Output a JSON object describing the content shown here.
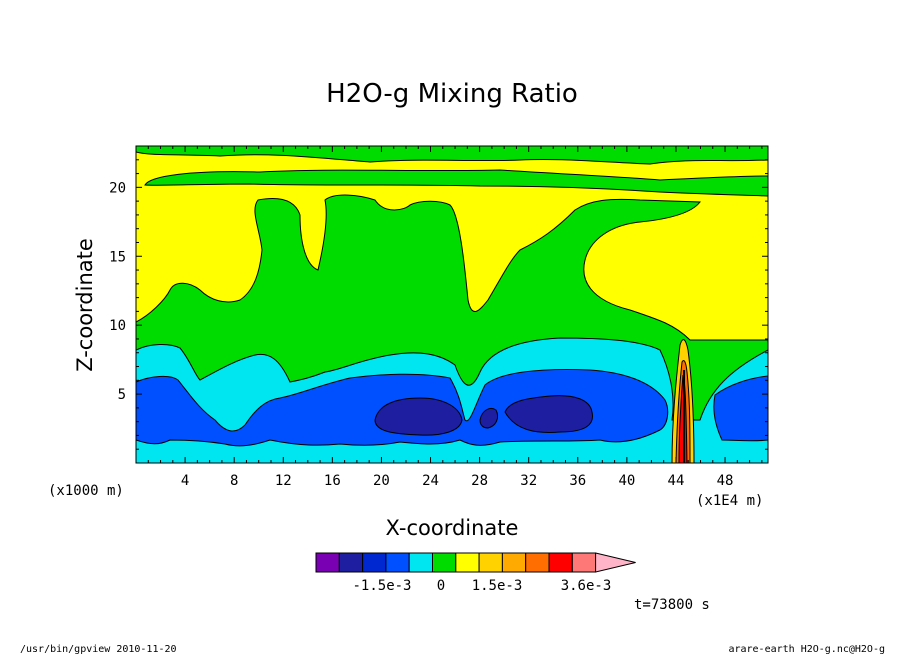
{
  "chart_data": {
    "type": "heatmap",
    "subtype": "filled-contour",
    "title": "H2O-g Mixing Ratio",
    "xlabel": "X-coordinate",
    "ylabel": "Z-coordinate",
    "x_unit_left": "(x1000 m)",
    "x_unit_right": "(x1E4 m)",
    "xlim": [
      0,
      51.5
    ],
    "ylim": [
      0,
      23
    ],
    "xticks": [
      4,
      8,
      12,
      16,
      20,
      24,
      28,
      32,
      36,
      40,
      44,
      48
    ],
    "xtick_labels": [
      "4",
      "8",
      "12",
      "16",
      "20",
      "24",
      "28",
      "32",
      "36",
      "40",
      "44",
      "48"
    ],
    "yticks": [
      5,
      10,
      15,
      20
    ],
    "ytick_labels": [
      "5",
      "10",
      "15",
      "20"
    ],
    "grid": false,
    "colorbar": {
      "colors": [
        "#7a00b4",
        "#1e1ea0",
        "#0028d0",
        "#0050ff",
        "#00e6f0",
        "#00dc00",
        "#ffff00",
        "#ffd200",
        "#ffaa00",
        "#ff6e00",
        "#ff0000",
        "#ff7878",
        "#ffb4c8"
      ],
      "labels": [
        "-1.5e-3",
        "0",
        "1.5e-3",
        "3.6e-3"
      ],
      "extend": "max"
    },
    "regions": {
      "upper_band_z": [
        20,
        23
      ],
      "mid_yellow_z": [
        9,
        20
      ],
      "green_layer_z": [
        8,
        11
      ],
      "cyan_layer_z": [
        6,
        9
      ],
      "blue_core_z": [
        1,
        6
      ],
      "dark_blue_cells_x": [
        [
          20,
          27
        ],
        [
          29,
          37
        ]
      ],
      "plume_x": 44.3
    },
    "time_label": "t=73800 s"
  },
  "footer": {
    "left": "/usr/bin/gpview  2010-11-20",
    "right": "arare-earth_H2O-g.nc@H2O-g"
  }
}
